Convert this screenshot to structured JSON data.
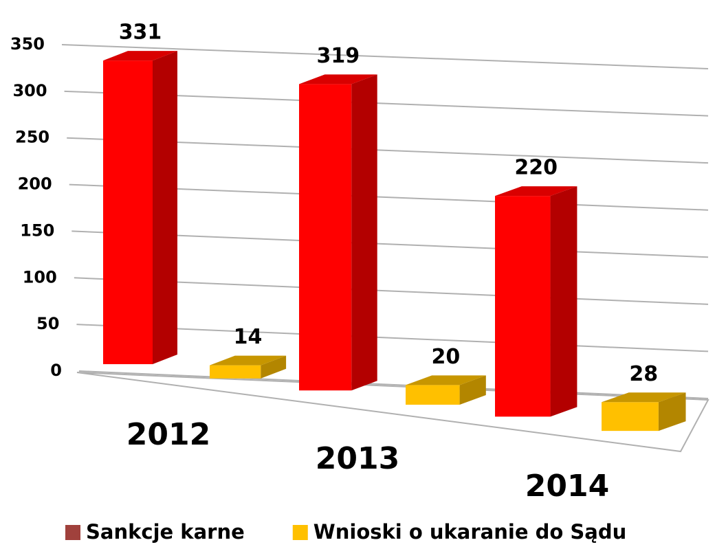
{
  "chart_data": {
    "type": "bar3d",
    "categories": [
      "2012",
      "2013",
      "2014"
    ],
    "series": [
      {
        "name": "Sankcje karne",
        "color": "#ff0000",
        "legend_color": "#a0413c",
        "values": [
          331,
          319,
          220
        ]
      },
      {
        "name": "Wnioski o ukaranie do Sądu",
        "color": "#ffc000",
        "values": [
          14,
          20,
          28
        ]
      }
    ],
    "ylim": [
      0,
      350
    ],
    "yticks": [
      0,
      50,
      100,
      150,
      200,
      250,
      300,
      350
    ],
    "grid": true,
    "legend": "bottom"
  }
}
